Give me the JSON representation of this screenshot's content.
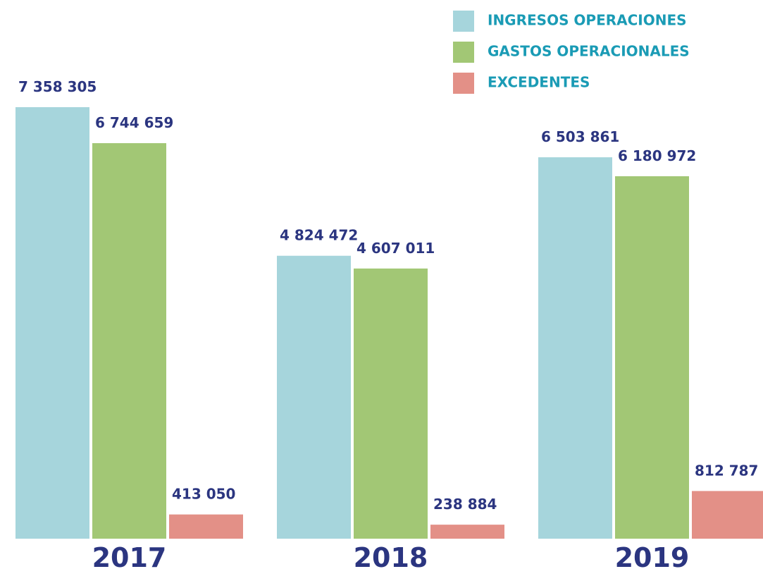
{
  "chart_data": {
    "type": "bar",
    "categories": [
      "2017",
      "2018",
      "2019"
    ],
    "series": [
      {
        "name": "INGRESOS OPERACIONES",
        "color": "#a6d5dc",
        "values": [
          7358305,
          4824472,
          6503861
        ],
        "value_labels": [
          "7 358 305",
          "4 824 472",
          "6 503 861"
        ]
      },
      {
        "name": "GASTOS OPERACIONALES",
        "color": "#a2c775",
        "values": [
          6744659,
          4607011,
          6180972
        ],
        "value_labels": [
          "6 744 659",
          "4 607 011",
          "6 180 972"
        ]
      },
      {
        "name": "EXCEDENTES",
        "color": "#e39087",
        "values": [
          413050,
          238884,
          812787
        ],
        "value_labels": [
          "413 050",
          "238 884",
          "812 787"
        ]
      }
    ]
  }
}
